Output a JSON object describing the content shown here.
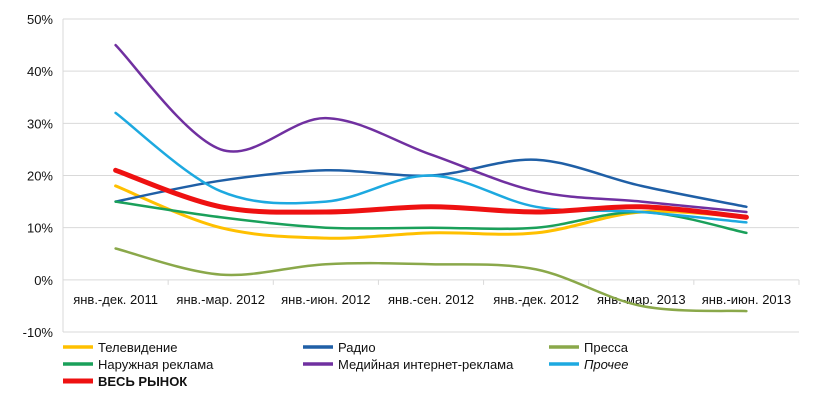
{
  "chart_data": {
    "type": "line",
    "categories": [
      "янв.-дек. 2011",
      "янв.-мар. 2012",
      "янв.-июн. 2012",
      "янв.-сен. 2012",
      "янв.-дек. 2012",
      "янв.-мар. 2013",
      "янв.-июн. 2013"
    ],
    "ylim": [
      -10,
      50
    ],
    "yticks": [
      "-10%",
      "0%",
      "10%",
      "20%",
      "30%",
      "40%",
      "50%"
    ],
    "grid": true,
    "legend_position": "bottom",
    "series": [
      {
        "name": "Телевидение",
        "color": "#FFC000",
        "width": 3,
        "values": [
          18,
          10,
          8,
          9,
          9,
          13,
          12
        ]
      },
      {
        "name": "Радио",
        "color": "#1F5FA6",
        "width": 2.5,
        "values": [
          15,
          19,
          21,
          20,
          23,
          18,
          14
        ]
      },
      {
        "name": "Пресса",
        "color": "#8AA84A",
        "width": 2.5,
        "values": [
          6,
          1,
          3,
          3,
          2,
          -5,
          -6
        ]
      },
      {
        "name": "Наружная реклама",
        "color": "#1AA05A",
        "width": 2.5,
        "values": [
          15,
          12,
          10,
          10,
          10,
          13,
          9
        ]
      },
      {
        "name": "Медийная интернет-реклама",
        "color": "#7030A0",
        "width": 2.5,
        "values": [
          45,
          25,
          31,
          24,
          17,
          15,
          13
        ]
      },
      {
        "name": "Прочее",
        "color": "#1DA9E0",
        "width": 2.5,
        "italic": true,
        "values": [
          32,
          17,
          15,
          20,
          14,
          13,
          11
        ]
      },
      {
        "name": "ВЕСЬ РЫНОК",
        "color": "#EE1111",
        "width": 5,
        "bold": true,
        "values": [
          21,
          14,
          13,
          14,
          13,
          14,
          12
        ]
      }
    ]
  }
}
